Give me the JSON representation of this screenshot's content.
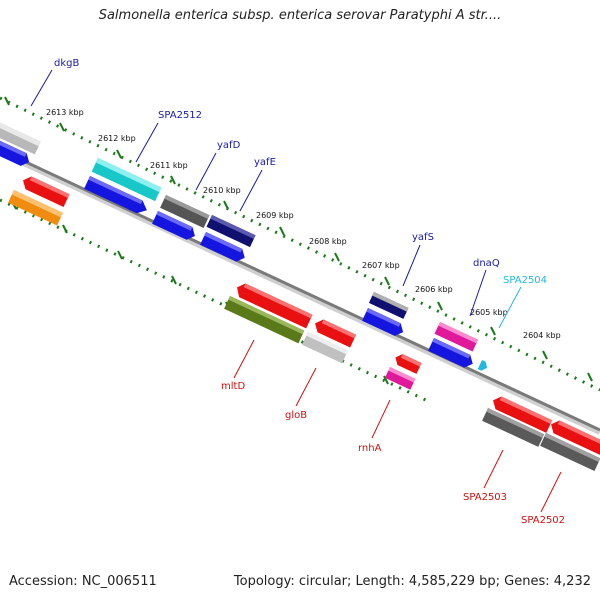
{
  "title": "Salmonella enterica subsp. enterica serovar Paratyphi A str....",
  "footer": {
    "accession": "Accession: NC_006511",
    "summary": "Topology: circular; Length: 4,585,229 bp; Genes: 4,232"
  },
  "ticks": [
    "2613 kbp",
    "2612 kbp",
    "2611 kbp",
    "2610 kbp",
    "2609 kbp",
    "2608 kbp",
    "2607 kbp",
    "2606 kbp",
    "2605 kbp",
    "2604 kbp"
  ],
  "gene_labels": [
    {
      "name": "dkgB",
      "color": "#1a1aa8"
    },
    {
      "name": "SPA2512",
      "color": "#1a1aa8"
    },
    {
      "name": "yafD",
      "color": "#1a1aa8"
    },
    {
      "name": "yafE",
      "color": "#1a1aa8"
    },
    {
      "name": "yafS",
      "color": "#1a1aa8"
    },
    {
      "name": "dnaQ",
      "color": "#1a1aa8"
    },
    {
      "name": "SPA2504",
      "color": "#22b8e0"
    },
    {
      "name": "mltD",
      "color": "#cc1111"
    },
    {
      "name": "gloB",
      "color": "#cc1111"
    },
    {
      "name": "rnhA",
      "color": "#cc1111"
    },
    {
      "name": "SPA2503",
      "color": "#cc1111"
    },
    {
      "name": "SPA2502",
      "color": "#cc1111"
    }
  ]
}
